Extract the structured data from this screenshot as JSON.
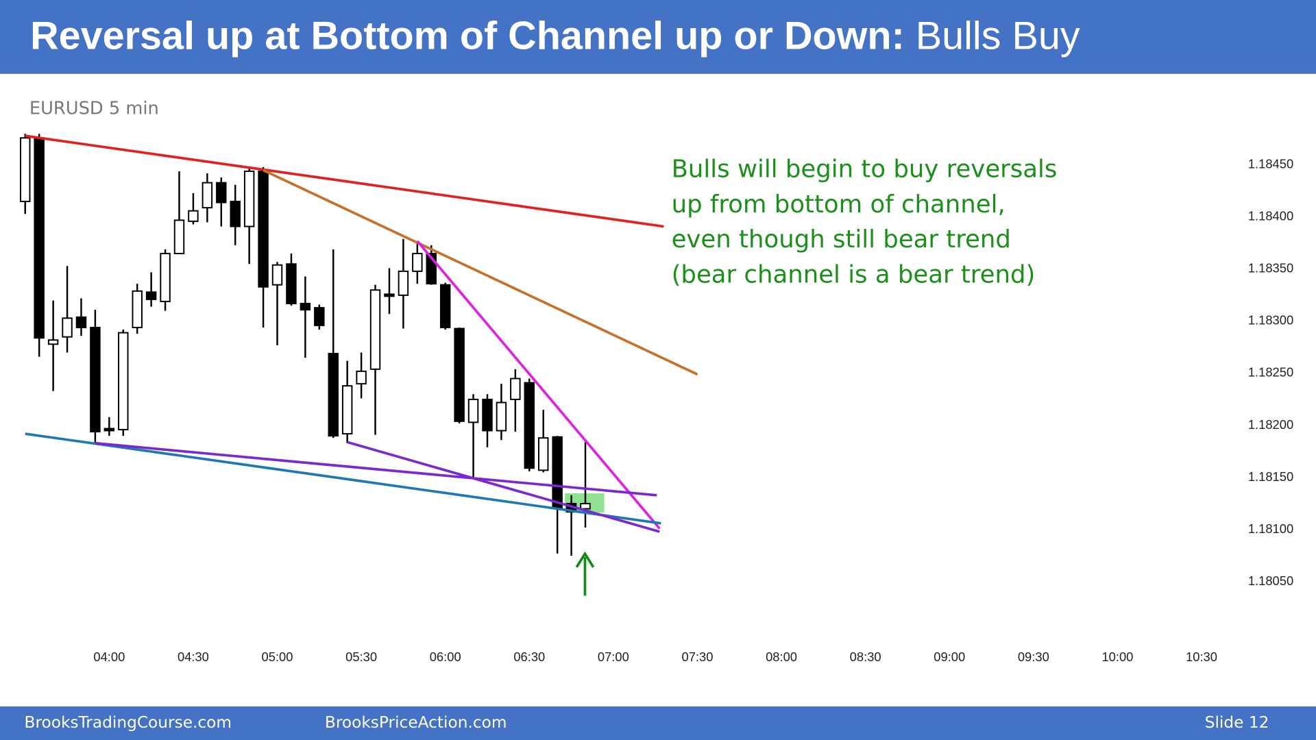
{
  "slide": {
    "title_bold": "Reversal up at Bottom of Channel up or Down:",
    "title_normal": "Bulls Buy",
    "footer_left": "BrooksTradingCourse.com",
    "footer_center": "BrooksPriceAction.com",
    "slide_label": "Slide  12"
  },
  "chart_data": {
    "type": "candlestick",
    "subtitle": "EURUSD 5 min",
    "annotation": [
      "Bulls will begin to buy reversals",
      "up from bottom of channel,",
      "even though still bear trend",
      "(bear channel is a bear trend)"
    ],
    "x": [
      210,
      215,
      220,
      225,
      230,
      235,
      240,
      245,
      250,
      255,
      260,
      265,
      270,
      275,
      280,
      285,
      290,
      295,
      300,
      305,
      310,
      315,
      320,
      325,
      330,
      335,
      340,
      345,
      350,
      355,
      360,
      365,
      370,
      375,
      380,
      385,
      390,
      395,
      400,
      405,
      410
    ],
    "open": [
      1.18415,
      1.18476,
      1.18278,
      1.18285,
      1.18304,
      1.18294,
      1.18197,
      1.18196,
      1.18294,
      1.18328,
      1.18319,
      1.18365,
      1.18396,
      1.18409,
      1.18433,
      1.18415,
      1.18391,
      1.18444,
      1.18335,
      1.18355,
      1.18317,
      1.18313,
      1.18269,
      1.18192,
      1.1824,
      1.18254,
      1.18326,
      1.18325,
      1.18348,
      1.18365,
      1.18335,
      1.18293,
      1.18203,
      1.18225,
      1.18195,
      1.18225,
      1.18241,
      1.18157,
      1.18189,
      1.18125,
      1.1812
    ],
    "high": [
      1.1848,
      1.1848,
      1.1832,
      1.18353,
      1.18322,
      1.18311,
      1.18208,
      1.18292,
      1.18336,
      1.18347,
      1.18369,
      1.18444,
      1.18423,
      1.18442,
      1.18438,
      1.18431,
      1.18448,
      1.18448,
      1.18357,
      1.18365,
      1.18343,
      1.18316,
      1.18369,
      1.18262,
      1.1827,
      1.18335,
      1.18351,
      1.18379,
      1.18375,
      1.18373,
      1.18337,
      1.18294,
      1.1823,
      1.1823,
      1.1824,
      1.18254,
      1.18245,
      1.18215,
      1.1819,
      1.18133,
      1.18184
    ],
    "low": [
      1.18403,
      1.18266,
      1.18233,
      1.1827,
      1.18286,
      1.18183,
      1.1819,
      1.1819,
      1.18288,
      1.18314,
      1.1831,
      1.18365,
      1.18393,
      1.18395,
      1.18391,
      1.18373,
      1.18355,
      1.18294,
      1.18277,
      1.18315,
      1.18265,
      1.18292,
      1.18188,
      1.18183,
      1.18226,
      1.18191,
      1.18307,
      1.18293,
      1.18336,
      1.18335,
      1.18292,
      1.18202,
      1.18149,
      1.18179,
      1.18186,
      1.18194,
      1.18156,
      1.18155,
      1.18077,
      1.18075,
      1.18102
    ],
    "close": [
      1.18476,
      1.18284,
      1.18282,
      1.18303,
      1.18294,
      1.18194,
      1.18195,
      1.18289,
      1.18329,
      1.18321,
      1.18365,
      1.18397,
      1.18406,
      1.18433,
      1.18414,
      1.18391,
      1.18444,
      1.18333,
      1.18354,
      1.18317,
      1.18311,
      1.18296,
      1.1819,
      1.18238,
      1.18252,
      1.1833,
      1.18324,
      1.18348,
      1.18365,
      1.18336,
      1.18294,
      1.18204,
      1.18225,
      1.18195,
      1.18222,
      1.18245,
      1.18159,
      1.18188,
      1.18121,
      1.18117,
      1.18125
    ],
    "up_color": "#ffffff",
    "down_color": "#000000",
    "xlim": [
      207,
      640
    ],
    "xticks": [
      {
        "value": 240,
        "label": "04:00"
      },
      {
        "value": 270,
        "label": "04:30"
      },
      {
        "value": 300,
        "label": "05:00"
      },
      {
        "value": 330,
        "label": "05:30"
      },
      {
        "value": 360,
        "label": "06:00"
      },
      {
        "value": 390,
        "label": "06:30"
      },
      {
        "value": 420,
        "label": "07:00"
      },
      {
        "value": 450,
        "label": "07:30"
      },
      {
        "value": 480,
        "label": "08:00"
      },
      {
        "value": 510,
        "label": "08:30"
      },
      {
        "value": 540,
        "label": "09:00"
      },
      {
        "value": 570,
        "label": "09:30"
      },
      {
        "value": 600,
        "label": "10:00"
      },
      {
        "value": 630,
        "label": "10:30"
      }
    ],
    "ylim": [
      1.1801,
      1.1849
    ],
    "yticks": [
      {
        "value": 1.1805,
        "label": "1.18050"
      },
      {
        "value": 1.181,
        "label": "1.18100"
      },
      {
        "value": 1.1815,
        "label": "1.18150"
      },
      {
        "value": 1.182,
        "label": "1.18200"
      },
      {
        "value": 1.1825,
        "label": "1.18250"
      },
      {
        "value": 1.183,
        "label": "1.18300"
      },
      {
        "value": 1.1835,
        "label": "1.18350"
      },
      {
        "value": 1.184,
        "label": "1.18400"
      },
      {
        "value": 1.1845,
        "label": "1.18450"
      }
    ],
    "trendlines": [
      {
        "color": "#e3211c",
        "x": [
          210,
          438
        ],
        "y": [
          1.18478,
          1.18391
        ]
      },
      {
        "color": "#c8702a",
        "x": [
          295,
          450
        ],
        "y": [
          1.18445,
          1.18249
        ]
      },
      {
        "color": "#e020e0",
        "x": [
          350,
          436.5
        ],
        "y": [
          1.18377,
          1.18101
        ]
      },
      {
        "color": "#1f77b4",
        "x": [
          210,
          437
        ],
        "y": [
          1.18192,
          1.18106
        ]
      },
      {
        "color": "#7a28d0",
        "x": [
          235,
          435.5
        ],
        "y": [
          1.18183,
          1.18133
        ]
      },
      {
        "color": "#7a28d0",
        "x": [
          325,
          436.5
        ],
        "y": [
          1.18184,
          1.18098
        ]
      }
    ]
  }
}
